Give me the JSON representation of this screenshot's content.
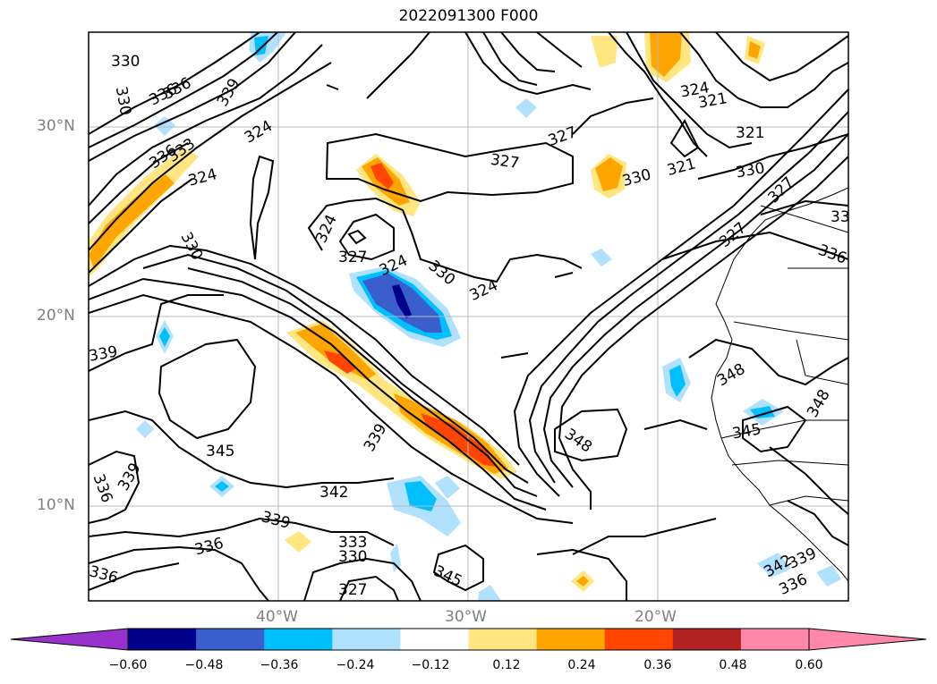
{
  "title": "2022091300 F000",
  "lat_labels": [
    "30°N",
    "20°N",
    "10°N"
  ],
  "lon_labels": [
    "40°W",
    "30°W",
    "20°W"
  ],
  "contour_labels": [
    "330",
    "330",
    "336",
    "336",
    "339",
    "324",
    "336",
    "333",
    "324",
    "330",
    "324",
    "327",
    "324",
    "330",
    "324",
    "327",
    "327",
    "330",
    "321",
    "321",
    "324",
    "321",
    "330",
    "327",
    "336",
    "339",
    "339",
    "345",
    "336",
    "339",
    "342",
    "339",
    "336",
    "333",
    "330",
    "327",
    "345",
    "348",
    "348",
    "345",
    "348",
    "342",
    "339",
    "336",
    "336",
    "327",
    "33"
  ],
  "colorbar": {
    "ticks": [
      "−0.60",
      "−0.48",
      "−0.36",
      "−0.24",
      "−0.12",
      "0.12",
      "0.24",
      "0.36",
      "0.48",
      "0.60"
    ],
    "colors": [
      "#9932cc",
      "#00008b",
      "#3a5fcd",
      "#00bfff",
      "#b0e2ff",
      "#ffffff",
      "#ffe680",
      "#ffa500",
      "#ff4500",
      "#b22222",
      "#ff88aa",
      "#ff88aa"
    ]
  }
}
